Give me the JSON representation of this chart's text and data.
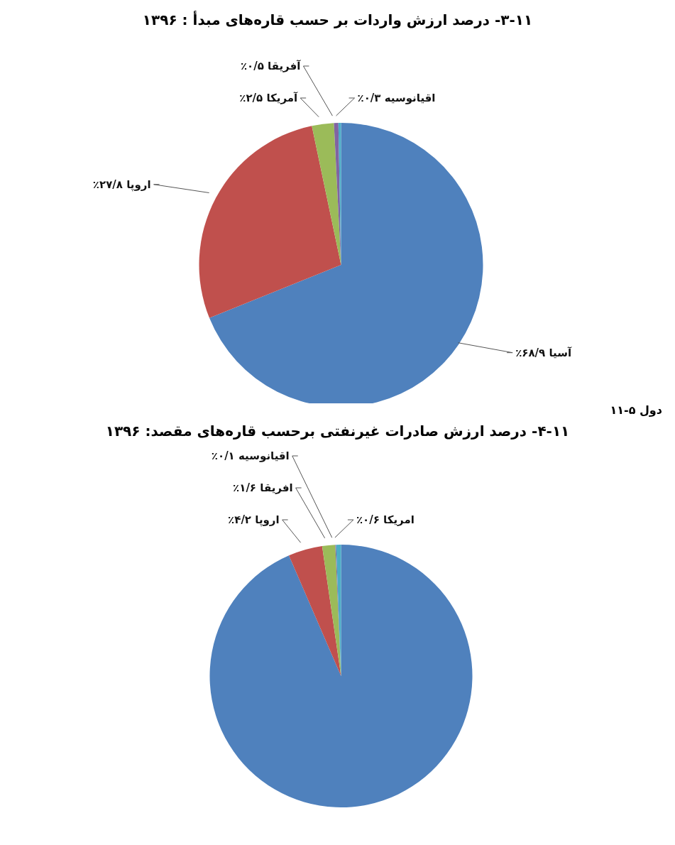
{
  "chart_data": [
    {
      "type": "pie",
      "title": "۳-۱۱- درصد ارزش واردات بر حسب قاره‌های مبدأ : ۱۳۹۶",
      "categories": [
        "آسیا",
        "اروپا",
        "آمریکا",
        "آفریقا",
        "اقیانوسیه"
      ],
      "values": [
        68.9,
        27.8,
        2.5,
        0.5,
        0.3
      ],
      "value_labels": [
        "۶۸/۹٪",
        "۲۷/۸٪",
        "۲/۵٪",
        "۰/۵٪",
        "۰/۳٪"
      ],
      "colors": [
        "#4f81bd",
        "#c0504d",
        "#9bbb59",
        "#8064a2",
        "#4bacc6"
      ],
      "annotations": [
        "دول ۵-۱۱"
      ]
    },
    {
      "type": "pie",
      "title": "۴-۱۱- درصد ارزش صادرات غیرنفتی برحسب قاره‌های مقصد: ۱۳۹۶",
      "categories": [
        null,
        "اروپا",
        "افریقا",
        "اقیانوسیه",
        "امریکا"
      ],
      "values": [
        93.5,
        4.2,
        1.6,
        0.1,
        0.6
      ],
      "value_labels": [
        null,
        "۴/۲٪",
        "۱/۶٪",
        "۰/۱٪",
        "۰/۶٪"
      ],
      "colors": [
        "#4f81bd",
        "#c0504d",
        "#9bbb59",
        "#8064a2",
        "#4bacc6"
      ]
    }
  ]
}
